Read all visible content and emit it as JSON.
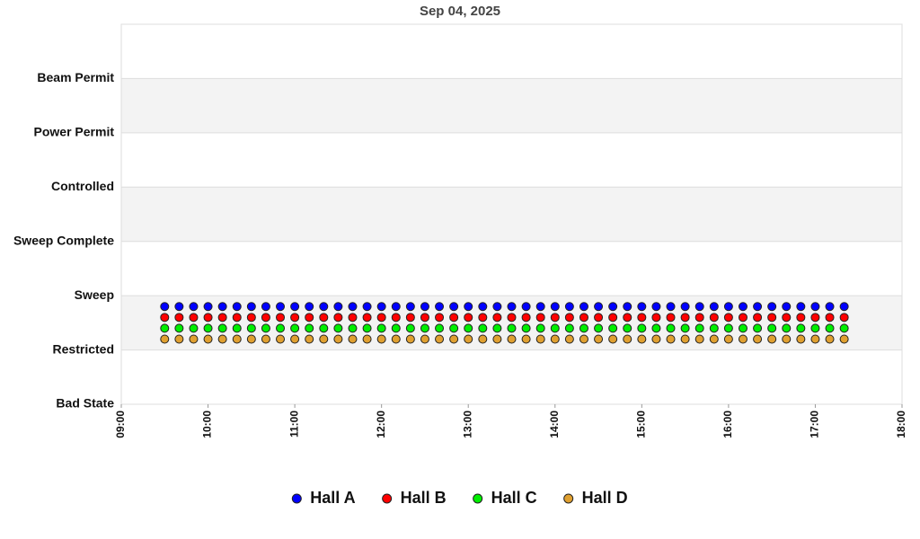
{
  "chart_data": {
    "type": "scatter",
    "title": "Sep 04, 2025",
    "x": [
      "09:30",
      "09:40",
      "09:50",
      "10:00",
      "10:10",
      "10:20",
      "10:30",
      "10:40",
      "10:50",
      "11:00",
      "11:10",
      "11:20",
      "11:30",
      "11:40",
      "11:50",
      "12:00",
      "12:10",
      "12:20",
      "12:30",
      "12:40",
      "12:50",
      "13:00",
      "13:10",
      "13:20",
      "13:30",
      "13:40",
      "13:50",
      "14:00",
      "14:10",
      "14:20",
      "14:30",
      "14:40",
      "14:50",
      "15:00",
      "15:10",
      "15:20",
      "15:30",
      "15:40",
      "15:50",
      "16:00",
      "16:10",
      "16:20",
      "16:30",
      "16:40",
      "16:50",
      "17:00",
      "17:10",
      "17:20"
    ],
    "xlim": [
      "09:00",
      "18:00"
    ],
    "xticks": [
      "09:00",
      "10:00",
      "11:00",
      "12:00",
      "13:00",
      "14:00",
      "15:00",
      "16:00",
      "17:00",
      "18:00"
    ],
    "ylim": [
      0,
      7
    ],
    "yticks": [
      {
        "value": 0,
        "label": "Bad State"
      },
      {
        "value": 1,
        "label": "Restricted"
      },
      {
        "value": 2,
        "label": "Sweep"
      },
      {
        "value": 3,
        "label": "Sweep Complete"
      },
      {
        "value": 4,
        "label": "Controlled"
      },
      {
        "value": 5,
        "label": "Power Permit"
      },
      {
        "value": 6,
        "label": "Beam Permit"
      }
    ],
    "grid": true,
    "band_color": "#f3f3f3",
    "legend": "bottom",
    "series": [
      {
        "name": "Hall A",
        "color": "#0000ff",
        "values": [
          1.8,
          1.8,
          1.8,
          1.8,
          1.8,
          1.8,
          1.8,
          1.8,
          1.8,
          1.8,
          1.8,
          1.8,
          1.8,
          1.8,
          1.8,
          1.8,
          1.8,
          1.8,
          1.8,
          1.8,
          1.8,
          1.8,
          1.8,
          1.8,
          1.8,
          1.8,
          1.8,
          1.8,
          1.8,
          1.8,
          1.8,
          1.8,
          1.8,
          1.8,
          1.8,
          1.8,
          1.8,
          1.8,
          1.8,
          1.8,
          1.8,
          1.8,
          1.8,
          1.8,
          1.8,
          1.8,
          1.8,
          1.8
        ]
      },
      {
        "name": "Hall B",
        "color": "#ff0000",
        "values": [
          1.6,
          1.6,
          1.6,
          1.6,
          1.6,
          1.6,
          1.6,
          1.6,
          1.6,
          1.6,
          1.6,
          1.6,
          1.6,
          1.6,
          1.6,
          1.6,
          1.6,
          1.6,
          1.6,
          1.6,
          1.6,
          1.6,
          1.6,
          1.6,
          1.6,
          1.6,
          1.6,
          1.6,
          1.6,
          1.6,
          1.6,
          1.6,
          1.6,
          1.6,
          1.6,
          1.6,
          1.6,
          1.6,
          1.6,
          1.6,
          1.6,
          1.6,
          1.6,
          1.6,
          1.6,
          1.6,
          1.6,
          1.6
        ]
      },
      {
        "name": "Hall C",
        "color": "#00ee00",
        "values": [
          1.4,
          1.4,
          1.4,
          1.4,
          1.4,
          1.4,
          1.4,
          1.4,
          1.4,
          1.4,
          1.4,
          1.4,
          1.4,
          1.4,
          1.4,
          1.4,
          1.4,
          1.4,
          1.4,
          1.4,
          1.4,
          1.4,
          1.4,
          1.4,
          1.4,
          1.4,
          1.4,
          1.4,
          1.4,
          1.4,
          1.4,
          1.4,
          1.4,
          1.4,
          1.4,
          1.4,
          1.4,
          1.4,
          1.4,
          1.4,
          1.4,
          1.4,
          1.4,
          1.4,
          1.4,
          1.4,
          1.4,
          1.4
        ]
      },
      {
        "name": "Hall D",
        "color": "#e0a030",
        "values": [
          1.2,
          1.2,
          1.2,
          1.2,
          1.2,
          1.2,
          1.2,
          1.2,
          1.2,
          1.2,
          1.2,
          1.2,
          1.2,
          1.2,
          1.2,
          1.2,
          1.2,
          1.2,
          1.2,
          1.2,
          1.2,
          1.2,
          1.2,
          1.2,
          1.2,
          1.2,
          1.2,
          1.2,
          1.2,
          1.2,
          1.2,
          1.2,
          1.2,
          1.2,
          1.2,
          1.2,
          1.2,
          1.2,
          1.2,
          1.2,
          1.2,
          1.2,
          1.2,
          1.2,
          1.2,
          1.2,
          1.2,
          1.2
        ]
      }
    ]
  }
}
